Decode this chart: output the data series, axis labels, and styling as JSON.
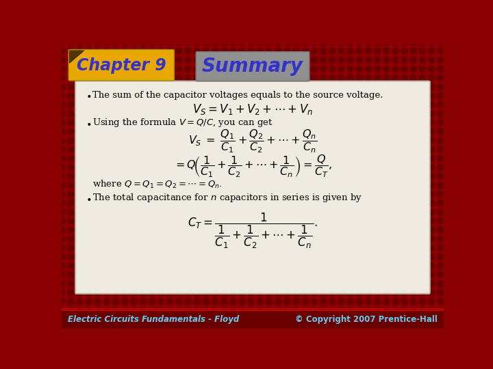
{
  "title": "Summary",
  "chapter": "Chapter 9",
  "footer_left": "Electric Circuits Fundamentals - Floyd",
  "footer_right": "© Copyright 2007 Prentice-Hall",
  "bg_color": "#8B0000",
  "dot_color": "#6B0000",
  "content_bg": "#F0EBE0",
  "content_edge": "#BBBBAA",
  "chapter_bg": "#E8A800",
  "chapter_edge": "#AA8800",
  "summary_bg": "#909090",
  "summary_edge": "#707070",
  "title_color": "#3333CC",
  "chapter_text_color": "#3333CC",
  "footer_color": "#66CCEE",
  "footer_bg": "#6B0000"
}
